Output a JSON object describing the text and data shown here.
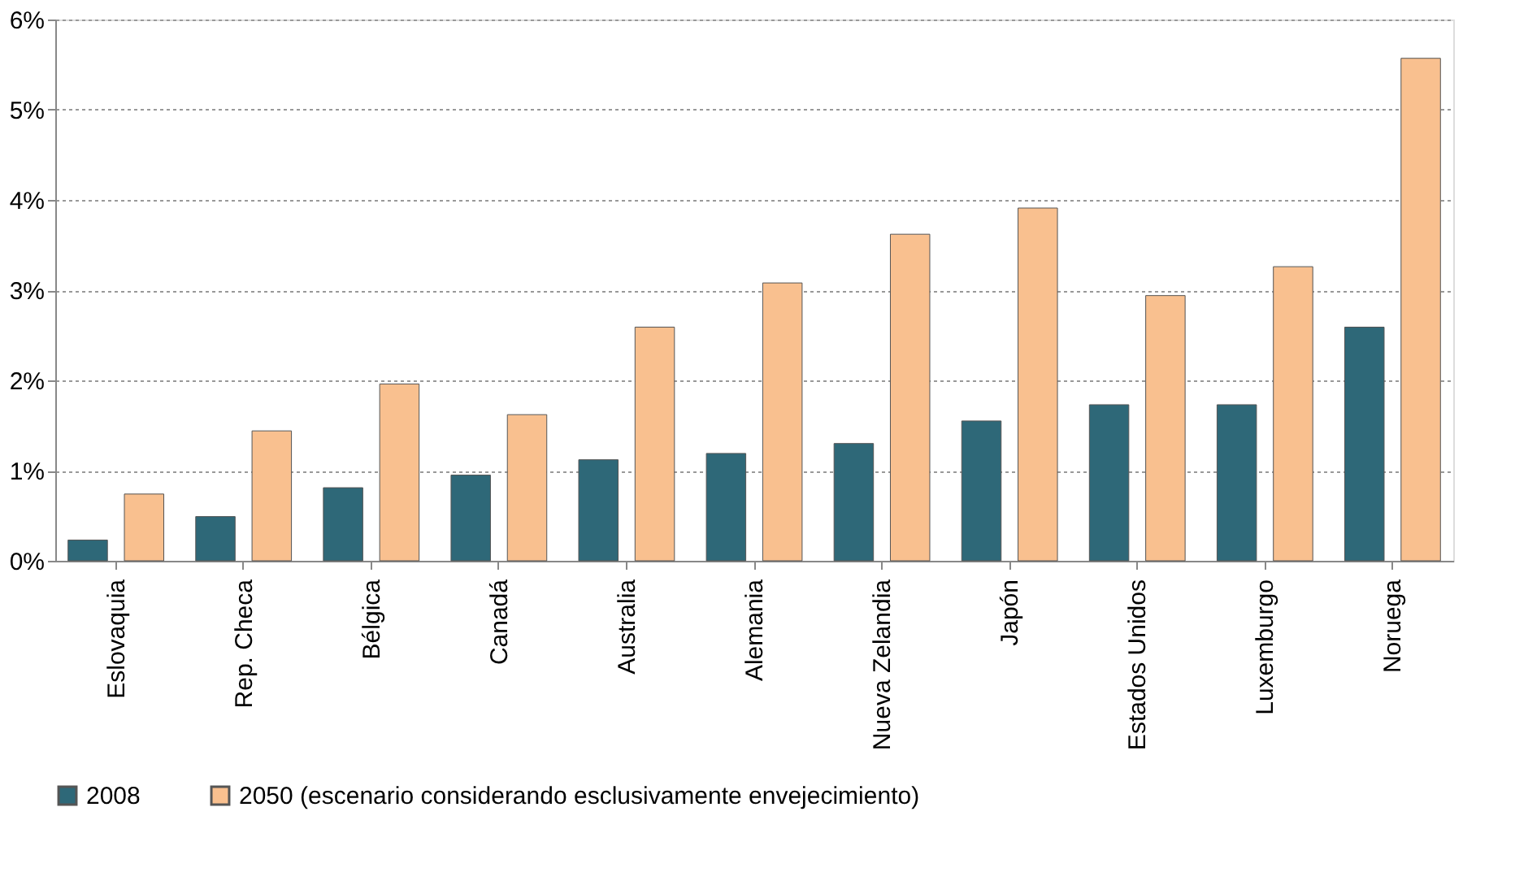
{
  "chart_data": {
    "type": "bar",
    "categories": [
      "Eslovaquia",
      "Rep. Checa",
      "Bélgica",
      "Canadá",
      "Australia",
      "Alemania",
      "Nueva Zelandia",
      "Japón",
      "Estados Unidos",
      "Luxemburgo",
      "Noruega"
    ],
    "series": [
      {
        "name": "2008",
        "color": "#2e6878",
        "values": [
          0.23,
          0.49,
          0.81,
          0.95,
          1.12,
          1.19,
          1.3,
          1.55,
          1.73,
          1.73,
          2.59
        ]
      },
      {
        "name": "2050 (escenario considerando esclusivamente envejecimiento)",
        "color": "#f9c08f",
        "values": [
          0.74,
          1.44,
          1.96,
          1.62,
          2.59,
          3.08,
          3.62,
          3.91,
          2.94,
          3.26,
          5.57
        ]
      }
    ],
    "ylim": [
      0,
      6
    ],
    "yticks": [
      {
        "value": 0,
        "label": "0%"
      },
      {
        "value": 1,
        "label": "1%"
      },
      {
        "value": 2,
        "label": "2%"
      },
      {
        "value": 3,
        "label": "3%"
      },
      {
        "value": 4,
        "label": "4%"
      },
      {
        "value": 5,
        "label": "5%"
      },
      {
        "value": 6,
        "label": "6%"
      }
    ],
    "grid": "y",
    "legend": "bottom"
  }
}
